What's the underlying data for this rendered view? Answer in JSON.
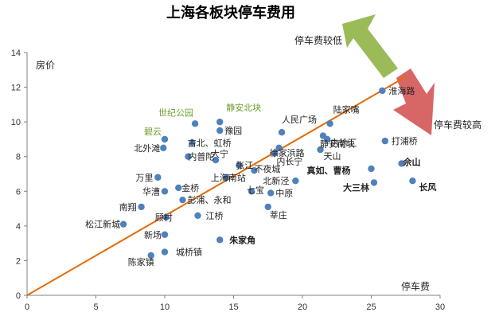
{
  "chart_data": {
    "type": "scatter",
    "title": "上海各板块停车费用",
    "xlabel": "停车费",
    "ylabel": "房价",
    "xlim": [
      0,
      30
    ],
    "ylim": [
      0,
      14
    ],
    "xticks": [
      0,
      5,
      10,
      15,
      20,
      25,
      30
    ],
    "yticks": [
      0,
      2,
      4,
      6,
      8,
      10,
      12,
      14
    ],
    "grid": false,
    "colors": {
      "point": "#4f81bd",
      "trend": "#e36c09",
      "arrow_up": "#9bbb59",
      "arrow_down": "#d96666",
      "green_label": "#6e9e2e"
    },
    "trendline": {
      "from": [
        0,
        0
      ],
      "to": [
        27.5,
        12.6
      ]
    },
    "annotations": [
      {
        "text": "停车费较低",
        "arrow": "up-left"
      },
      {
        "text": "停车费较高",
        "arrow": "down-right"
      }
    ],
    "points": [
      {
        "label": "淮海路",
        "x": 25.8,
        "y": 11.8
      },
      {
        "label": "陆家嘴",
        "x": 22.0,
        "y": 9.9
      },
      {
        "label": "人民广场",
        "x": 18.5,
        "y": 9.4
      },
      {
        "label": "静安南块",
        "x": 21.5,
        "y": 9.2
      },
      {
        "label": "内徐汇",
        "x": 21.8,
        "y": 9.0
      },
      {
        "label": "打浦桥",
        "x": 26.0,
        "y": 8.9
      },
      {
        "label": "世纪公园",
        "x": 12.2,
        "y": 9.9
      },
      {
        "label": "静安北块",
        "x": 14.0,
        "y": 10.0
      },
      {
        "label": "豫园",
        "x": 14.0,
        "y": 9.5
      },
      {
        "label": "碧云",
        "x": 10.0,
        "y": 9.0
      },
      {
        "label": "古北、虹桥",
        "x": 12.0,
        "y": 8.8
      },
      {
        "label": "北外滩",
        "x": 9.9,
        "y": 8.5
      },
      {
        "label": "徐家浜路",
        "x": 18.3,
        "y": 8.5
      },
      {
        "label": "内长宁",
        "x": 18.0,
        "y": 8.2
      },
      {
        "label": "天山",
        "x": 21.3,
        "y": 8.4
      },
      {
        "label": "内普陀",
        "x": 11.7,
        "y": 8.0
      },
      {
        "label": "大宁",
        "x": 13.7,
        "y": 7.8
      },
      {
        "label": "张江",
        "x": 15.4,
        "y": 7.5
      },
      {
        "label": "不夜城",
        "x": 16.5,
        "y": 7.2
      },
      {
        "label": "真如、曹杨",
        "x": 25.0,
        "y": 7.3
      },
      {
        "label": "佘山",
        "x": 27.2,
        "y": 7.6
      },
      {
        "label": "万里",
        "x": 9.5,
        "y": 6.8
      },
      {
        "label": "上海南站",
        "x": 14.5,
        "y": 6.8
      },
      {
        "label": "北新泾",
        "x": 19.5,
        "y": 6.6
      },
      {
        "label": "大三林",
        "x": 25.2,
        "y": 6.5
      },
      {
        "label": "长风",
        "x": 28.0,
        "y": 6.6
      },
      {
        "label": "金桥",
        "x": 11.0,
        "y": 6.2
      },
      {
        "label": "华漕",
        "x": 10.0,
        "y": 6.0
      },
      {
        "label": "七宝",
        "x": 16.3,
        "y": 6.0
      },
      {
        "label": "中原",
        "x": 17.7,
        "y": 5.9
      },
      {
        "label": "彭浦、永和",
        "x": 11.3,
        "y": 5.5
      },
      {
        "label": "南翔",
        "x": 8.3,
        "y": 5.1
      },
      {
        "label": "莘庄",
        "x": 17.5,
        "y": 5.1
      },
      {
        "label": "顾村",
        "x": 10.1,
        "y": 4.5
      },
      {
        "label": "江桥",
        "x": 12.4,
        "y": 4.6
      },
      {
        "label": "松江新城",
        "x": 7.0,
        "y": 4.1
      },
      {
        "label": "新场",
        "x": 10.0,
        "y": 3.5
      },
      {
        "label": "朱家角",
        "x": 14.0,
        "y": 3.2
      },
      {
        "label": "陈家镇",
        "x": 9.0,
        "y": 2.3
      },
      {
        "label": "城桥镇",
        "x": 10.0,
        "y": 2.5
      }
    ]
  }
}
